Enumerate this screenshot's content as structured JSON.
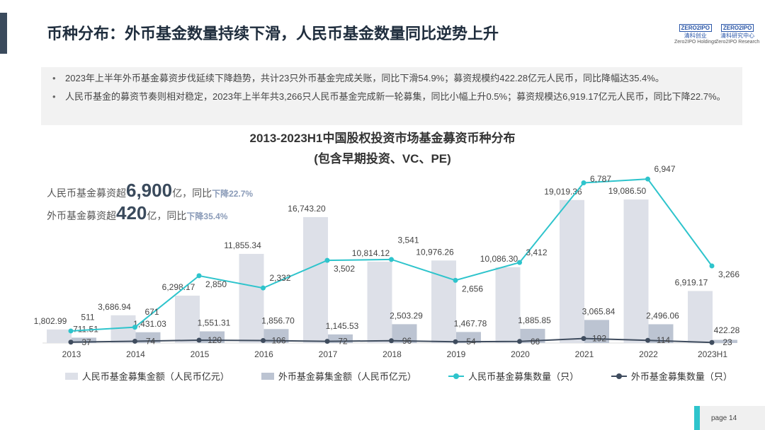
{
  "header": {
    "title": "币种分布：外币基金数量持续下滑，人民币基金数量同比逆势上升",
    "logos": [
      {
        "brand": "ZERO2IPO",
        "name": "清科创业",
        "sub": "Zero2IPO Holdings"
      },
      {
        "brand": "ZERO2IPO",
        "name": "清科研究中心",
        "sub": "Zero2IPO Research"
      }
    ]
  },
  "bullets": [
    "2023年上半年外币基金募资步伐延续下降趋势，共计23只外币基金完成关账，同比下滑54.9%；募资规模约422.28亿元人民币，同比降幅达35.4%。",
    "人民币基金的募资节奏则相对稳定，2023年上半年共3,266只人民币基金完成新一轮募集，同比小幅上升0.5%；募资规模达6,919.17亿元人民币，同比下降22.7%。"
  ],
  "annotations": [
    {
      "pre": "人民币基金募资超",
      "big": "6,900",
      "post": "亿，同比",
      "down": "下降22.7%"
    },
    {
      "pre": "外币基金募资超",
      "big": "420",
      "post": "亿，同比",
      "down": "下降35.4%"
    }
  ],
  "colors": {
    "rmb_bar": "#dde0e8",
    "fx_bar": "#bcc4d2",
    "rmb_line": "#2ec4cc",
    "fx_line": "#3f4c5e"
  },
  "chart_data": {
    "type": "bar",
    "title": "2013-2023H1中国股权投资市场基金募资币种分布",
    "subtitle": "(包含早期投资、VC、PE)",
    "categories": [
      "2013",
      "2014",
      "2015",
      "2016",
      "2017",
      "2018",
      "2019",
      "2020",
      "2021",
      "2022",
      "2023H1"
    ],
    "series": [
      {
        "name": "人民币基金募集金额（人民币亿元）",
        "type": "bar",
        "values": [
          1802.99,
          3686.94,
          6298.17,
          11855.34,
          16743.2,
          10814.12,
          10976.26,
          10086.3,
          19019.36,
          19086.5,
          6919.17
        ],
        "labels": [
          "1,802.99",
          "3,686.94",
          "6,298.17",
          "11,855.34",
          "16,743.20",
          "10,814.12",
          "10,976.26",
          "10,086.30",
          "19,019.36",
          "19,086.50",
          "6,919.17"
        ]
      },
      {
        "name": "外币基金募集金额（人民币亿元）",
        "type": "bar",
        "values": [
          711.51,
          1431.03,
          1551.31,
          1856.7,
          1145.53,
          2503.29,
          1467.78,
          1885.85,
          3065.84,
          2496.06,
          422.28
        ],
        "labels": [
          "711.51",
          "1,431.03",
          "1,551.31",
          "1,856.70",
          "1,145.53",
          "2,503.29",
          "1,467.78",
          "1,885.85",
          "3,065.84",
          "2,496.06",
          "422.28"
        ]
      },
      {
        "name": "人民币基金募集数量（只）",
        "type": "line",
        "values": [
          511,
          671,
          2850,
          2332,
          3502,
          3541,
          2656,
          3412,
          6787,
          6947,
          3266
        ],
        "labels": [
          "511",
          "671",
          "2,850",
          "2,332",
          "3,502",
          "3,541",
          "2,656",
          "3,412",
          "6,787",
          "6,947",
          "3,266"
        ]
      },
      {
        "name": "外币基金募集数量（只）",
        "type": "line",
        "values": [
          37,
          74,
          120,
          106,
          72,
          96,
          54,
          66,
          192,
          114,
          23
        ],
        "labels": [
          "37",
          "74",
          "120",
          "106",
          "72",
          "96",
          "54",
          "66",
          "192",
          "114",
          "23"
        ]
      }
    ]
  },
  "footer": {
    "page": "page  14"
  }
}
